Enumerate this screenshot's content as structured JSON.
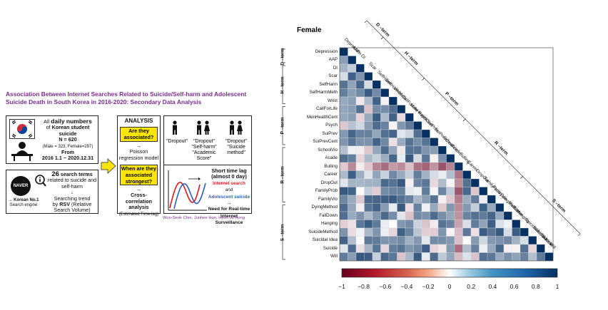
{
  "infographic": {
    "title": "Association Between Internet Searches Related to Suicide/Self-harm and Adolescent Suicide Death in South Korea in 2016-2020: Secondary Data Analysis",
    "daily": {
      "prefix": "All",
      "bold": "daily numbers",
      "of": "of",
      "subject": "Korean student suicide",
      "n": "N = 620",
      "split": "(Male = 323, Female=297)",
      "from": "From",
      "range": "2016 1.1 ~ 2020.12.31"
    },
    "naver": {
      "logo": "NAVER",
      "label": "→ Korean No.1",
      "sub": "Search engine",
      "terms_bold": "26",
      "terms": "search terms",
      "related": "related to suicide and self-harm",
      "arrow": "↓",
      "trend1": "Searching trend",
      "trend2": "by",
      "rsv": "RSV",
      "trend3": "(Relative Search Volume)"
    },
    "analysis": {
      "header": "ANALYSIS",
      "q1": "Are they associated?",
      "a1_arrow": "→",
      "a1": "Poisson regression model",
      "q2": "When are they associated strongest?",
      "a2_arrow": "→",
      "a2": "Cross-correlation analysis",
      "a2_sub": "(Estimated Time-lag)"
    },
    "results": {
      "r1": "\"Dropout\"",
      "r2": "\"Dropout\" \"Self-harm\" \"Academic Score\"",
      "r3": "\"Dropout\" \"Suicide method\"",
      "lag_title": "Short time lag (almost 0 day)",
      "lag_red": "Internet search",
      "lag_and": "and",
      "lag_blue": "Adolescent suicide",
      "arrow": "→",
      "need": "Need for Real-time Internet Surveillance"
    },
    "authors": "Won-Seok Choi, Junhee Han, Hyun Ju Hong"
  },
  "matrix": {
    "title": "Female",
    "variables": [
      "Depression",
      "AAP",
      "DI",
      "Scar",
      "SelfHarm",
      "SelfHarmMeth",
      "Wrist",
      "CallForLife",
      "MenHealthCent",
      "Psych",
      "SuiPrev",
      "SuiPrevCent",
      "SchoolVio",
      "Acade",
      "Bulling",
      "Career",
      "DropOut",
      "FamilyProb",
      "FamilyVio",
      "DyingMethod",
      "FallDown",
      "Hanging",
      "SuicideMethod",
      "Suicidal Idea",
      "Suicide",
      "Will"
    ],
    "groups": [
      "D –term",
      "H –term",
      "P –term",
      "R –term",
      "S –term"
    ],
    "colorbar_ticks": [
      "−1",
      "−0.8",
      "−0.6",
      "−0.4",
      "−0.2",
      "0",
      "0.2",
      "0.4",
      "0.6",
      "0.8",
      "1"
    ],
    "colors": {
      "neg": "#67001f",
      "mid": "#ffffff",
      "pos": "#053061"
    }
  }
}
